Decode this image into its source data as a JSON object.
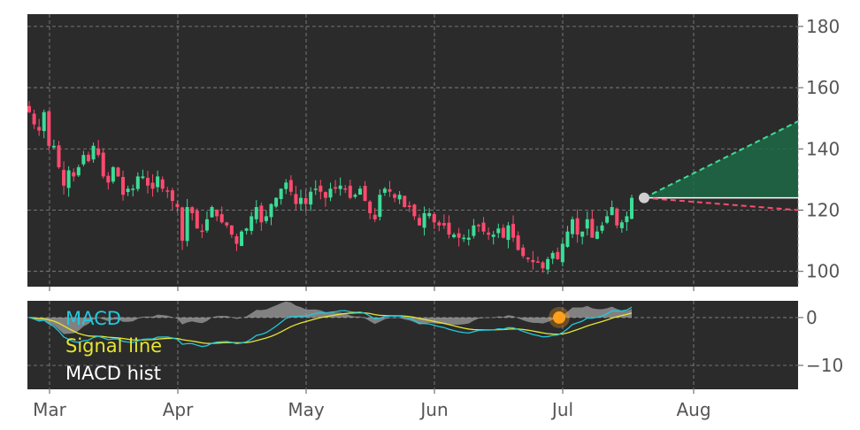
{
  "chart_data": [
    {
      "type": "candlestick",
      "panel": "price",
      "y_ticks": [
        100,
        120,
        140,
        160,
        180
      ],
      "ylim": [
        95,
        184
      ],
      "x_ticks": [
        "Mar",
        "Apr",
        "May",
        "Jun",
        "Jul",
        "Aug"
      ],
      "grid": true,
      "colors": {
        "background": "#2b2b2b",
        "up": "#3ddc97",
        "down": "#ff4a6e",
        "forecast_high": "#3ddc97",
        "forecast_low": "#ff4a6e",
        "forecast_fill": "#1d6a48",
        "marker": "#d0d0d0"
      },
      "close": [
        152,
        148,
        146,
        152,
        141,
        141,
        134,
        128,
        133,
        131,
        134,
        138,
        136,
        141,
        138,
        131,
        129,
        134,
        131,
        125,
        127,
        127,
        131,
        131,
        128,
        127,
        131,
        127,
        126,
        123,
        121,
        110,
        121,
        119,
        114,
        113,
        117,
        121,
        118,
        116,
        115,
        112,
        109,
        113,
        114,
        118,
        121,
        116,
        118,
        122,
        124,
        127,
        129,
        126,
        122,
        124,
        122,
        126,
        127,
        126,
        124,
        127,
        127,
        128,
        127,
        124,
        125,
        127,
        123,
        119,
        117,
        125,
        127,
        126,
        124,
        125,
        121,
        121,
        118,
        115,
        119,
        119,
        116,
        115,
        115,
        112,
        112,
        111,
        111,
        111,
        115,
        115,
        113,
        112,
        112,
        114,
        111,
        115,
        111,
        107,
        105,
        104,
        103,
        103,
        101,
        104,
        106,
        104,
        109,
        113,
        117,
        112,
        113,
        117,
        111,
        113,
        115,
        118,
        121,
        115,
        116,
        118,
        124
      ],
      "forecast": {
        "start": 124,
        "high_end": 149,
        "low_end": 120
      }
    },
    {
      "type": "line",
      "panel": "macd",
      "y_ticks": [
        0,
        -10
      ],
      "ylim": [
        -15,
        3.5
      ],
      "series": [
        {
          "name": "MACD",
          "color": "#22c8dc"
        },
        {
          "name": "Signal line",
          "color": "#e6e632"
        },
        {
          "name": "MACD hist",
          "color": "#c8c8c8"
        }
      ],
      "crossover_marker": {
        "date": "Jul",
        "value": 0,
        "color": "#ff9f1c"
      }
    }
  ],
  "legend": {
    "macd": "MACD",
    "signal": "Signal line",
    "hist": "MACD hist"
  }
}
